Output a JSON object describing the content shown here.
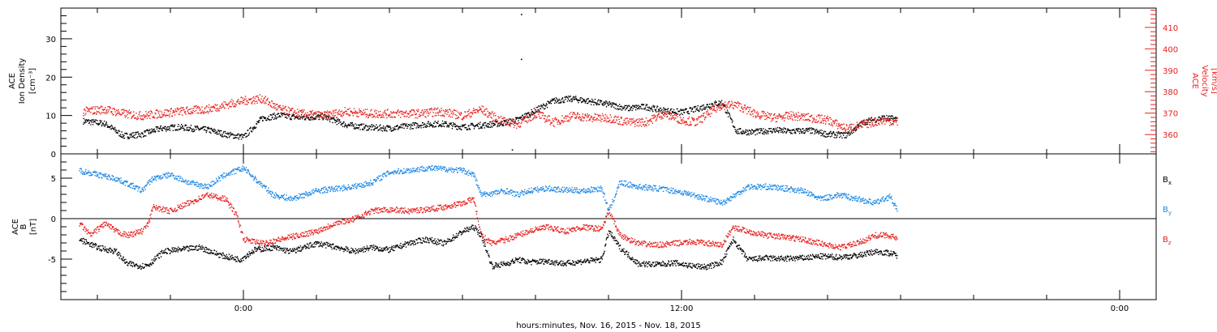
{
  "chart_data": [
    {
      "type": "scatter",
      "panel": "plasma",
      "ylabel_left": [
        "ACE",
        "Ion Density",
        "[cm⁻³]"
      ],
      "ylabel_right": [
        "ACE",
        "Velocity",
        "[km/s]"
      ],
      "ylim_left": [
        0,
        38
      ],
      "ylim_right": [
        351,
        419
      ],
      "yticks_left": [
        "0",
        "10",
        "20",
        "30"
      ],
      "yticks_right": [
        "360",
        "370",
        "380",
        "390",
        "400",
        "410"
      ],
      "left_color": "#000000",
      "right_color": "#e8211e",
      "series": [
        {
          "axis": "left",
          "color": "#000000",
          "t": [
            -4.4,
            -3.8,
            -3.3,
            -2.8,
            -2.3,
            -1.8,
            -1.0,
            -0.5,
            0.0,
            0.5,
            1.0,
            1.5,
            2.2,
            2.8,
            3.4,
            4.0,
            4.8,
            5.4,
            6.0,
            6.5,
            7.0,
            7.5,
            8.0,
            8.5,
            9.0,
            9.5,
            10.0,
            10.5,
            11.0,
            11.5,
            12.0,
            12.4,
            12.8,
            13.1,
            13.5,
            14.0,
            14.5,
            15.0,
            15.5,
            16.0,
            16.5,
            17.0,
            17.5,
            17.9
          ],
          "values": [
            8.7,
            8.0,
            4.8,
            5.2,
            6.7,
            7.1,
            6.4,
            5.2,
            4.5,
            9.4,
            10.2,
            9.6,
            9.8,
            7.7,
            7.0,
            6.8,
            7.7,
            8.0,
            7.1,
            7.6,
            8.0,
            9.0,
            11.5,
            14.0,
            14.5,
            13.8,
            13.0,
            12.0,
            12.4,
            11.4,
            11.0,
            11.8,
            13.0,
            13.5,
            6.0,
            5.8,
            6.3,
            6.0,
            6.2,
            5.2,
            5.0,
            8.5,
            9.5,
            9.2
          ]
        },
        {
          "axis": "right",
          "color": "#e8211e",
          "t": [
            -4.4,
            -3.8,
            -3.3,
            -2.8,
            -2.3,
            -1.8,
            -1.0,
            -0.5,
            0.0,
            0.5,
            1.0,
            1.5,
            2.2,
            2.8,
            3.4,
            4.0,
            4.8,
            5.4,
            6.0,
            6.5,
            7.0,
            7.5,
            8.0,
            8.5,
            9.0,
            9.5,
            10.0,
            10.5,
            11.0,
            11.5,
            12.0,
            12.4,
            12.8,
            13.1,
            13.5,
            14.0,
            14.5,
            15.0,
            15.5,
            16.0,
            16.5,
            17.0,
            17.5,
            17.9
          ],
          "values": [
            371,
            372,
            370,
            369,
            370,
            371,
            372,
            374,
            376,
            377,
            372,
            370,
            369,
            371,
            370,
            370,
            370,
            371,
            369,
            372,
            367,
            365,
            370,
            366,
            369,
            368,
            368,
            366,
            366,
            370,
            367,
            366,
            371,
            374,
            374,
            370,
            368,
            369,
            368,
            367,
            363,
            365,
            367,
            366
          ]
        }
      ],
      "sparse_points": [
        {
          "axis": "left",
          "t": 7.6,
          "value": 36.5
        },
        {
          "axis": "left",
          "t": 7.6,
          "value": 24.8
        },
        {
          "axis": "left",
          "t": 7.35,
          "value": 1.2
        }
      ]
    },
    {
      "type": "scatter",
      "panel": "magnetic-field",
      "ylabel_left": [
        "ACE",
        "B",
        "[nT]"
      ],
      "ylim": [
        -10,
        8
      ],
      "yticks_left": [
        "-5",
        "0",
        "5"
      ],
      "zero_line": true,
      "legend": [
        "Bx",
        "By",
        "Bz"
      ],
      "legend_placement": "right",
      "series": [
        {
          "name": "Bx",
          "color": "#000000",
          "t": [
            -4.5,
            -4.0,
            -3.5,
            -3.2,
            -2.8,
            -2.6,
            -2.2,
            -1.8,
            -1.2,
            -0.6,
            -0.1,
            0.3,
            0.8,
            1.3,
            2.0,
            2.6,
            3.0,
            3.5,
            4.0,
            4.5,
            5.0,
            5.5,
            6.0,
            6.3,
            6.5,
            6.8,
            7.2,
            7.5,
            7.8,
            8.3,
            8.8,
            9.3,
            9.8,
            10.0,
            10.3,
            10.8,
            11.3,
            11.8,
            12.3,
            12.7,
            13.1,
            13.4,
            13.8,
            14.3,
            14.8,
            15.3,
            15.8,
            16.3,
            16.8,
            17.3,
            17.7,
            17.9
          ],
          "values": [
            -2.5,
            -3.5,
            -4.0,
            -5.5,
            -5.8,
            -5.6,
            -4.0,
            -3.8,
            -3.5,
            -4.5,
            -5.0,
            -3.8,
            -3.5,
            -4.0,
            -3.0,
            -3.5,
            -4.0,
            -3.5,
            -3.8,
            -3.0,
            -2.5,
            -3.0,
            -1.5,
            -1.0,
            -2.0,
            -5.8,
            -5.5,
            -5.0,
            -5.3,
            -5.2,
            -5.5,
            -5.2,
            -5.0,
            -1.5,
            -3.5,
            -5.5,
            -5.6,
            -5.4,
            -5.8,
            -5.9,
            -5.3,
            -2.5,
            -5.0,
            -4.8,
            -4.9,
            -4.8,
            -4.6,
            -4.7,
            -4.5,
            -4.0,
            -4.2,
            -4.5
          ]
        },
        {
          "name": "By",
          "color": "#1e88e5",
          "t": [
            -4.5,
            -4.0,
            -3.5,
            -3.0,
            -2.8,
            -2.5,
            -2.0,
            -1.5,
            -1.0,
            -0.5,
            0.0,
            0.3,
            0.8,
            1.3,
            2.0,
            2.6,
            3.0,
            3.5,
            4.0,
            4.5,
            5.0,
            5.5,
            6.0,
            6.3,
            6.5,
            6.8,
            7.2,
            7.5,
            7.8,
            8.3,
            8.8,
            9.3,
            9.8,
            10.0,
            10.3,
            10.8,
            11.3,
            11.8,
            12.3,
            12.7,
            13.1,
            13.4,
            13.8,
            14.3,
            14.8,
            15.3,
            15.8,
            16.3,
            16.8,
            17.3,
            17.7,
            17.9
          ],
          "values": [
            6.0,
            5.5,
            5.0,
            4.0,
            3.5,
            5.0,
            5.5,
            4.5,
            4.0,
            5.5,
            6.3,
            5.0,
            3.0,
            2.5,
            3.5,
            3.8,
            4.0,
            4.5,
            5.8,
            6.0,
            6.3,
            6.2,
            6.0,
            5.5,
            3.0,
            3.2,
            3.5,
            3.0,
            3.5,
            3.8,
            3.6,
            3.5,
            3.8,
            1.0,
            4.5,
            4.0,
            3.8,
            3.5,
            3.0,
            2.5,
            2.0,
            2.8,
            4.0,
            4.0,
            3.8,
            3.5,
            2.5,
            3.0,
            2.5,
            2.0,
            2.8,
            1.0
          ]
        },
        {
          "name": "Bz",
          "color": "#e8211e",
          "t": [
            -4.5,
            -4.2,
            -3.8,
            -3.5,
            -3.2,
            -2.8,
            -2.6,
            -2.5,
            -2.0,
            -1.5,
            -1.0,
            -0.5,
            -0.2,
            0.0,
            0.5,
            1.0,
            1.5,
            2.0,
            2.5,
            3.0,
            3.5,
            4.0,
            4.5,
            5.0,
            5.5,
            6.0,
            6.3,
            6.5,
            6.8,
            7.2,
            7.5,
            7.8,
            8.3,
            8.8,
            9.3,
            9.8,
            10.0,
            10.3,
            10.8,
            11.3,
            11.8,
            12.3,
            12.7,
            13.1,
            13.4,
            13.8,
            14.3,
            14.8,
            15.3,
            15.8,
            16.3,
            16.8,
            17.3,
            17.7,
            17.9
          ],
          "values": [
            -0.5,
            -2.0,
            -0.5,
            -1.5,
            -2.0,
            -1.5,
            -0.5,
            1.5,
            1.0,
            2.0,
            3.0,
            2.5,
            0.5,
            -2.5,
            -3.0,
            -2.5,
            -2.0,
            -1.5,
            -0.5,
            0.0,
            1.0,
            1.2,
            1.0,
            1.2,
            1.5,
            2.0,
            2.5,
            -2.0,
            -3.0,
            -2.5,
            -2.0,
            -1.5,
            -1.0,
            -1.5,
            -1.0,
            -1.2,
            1.0,
            -2.0,
            -3.0,
            -3.2,
            -3.0,
            -2.8,
            -3.0,
            -3.2,
            -1.0,
            -1.5,
            -2.0,
            -2.2,
            -2.5,
            -3.0,
            -3.5,
            -3.0,
            -2.0,
            -2.0,
            -2.5
          ]
        }
      ]
    }
  ],
  "time_axis": {
    "tick_labels": [
      "0:00",
      "12:00",
      "0:00"
    ],
    "tick_hours": [
      0,
      12,
      24
    ],
    "range_hours": [
      -5,
      25
    ],
    "xlabel": "hours:minutes, Nov. 16, 2015 - Nov. 18, 2015"
  }
}
